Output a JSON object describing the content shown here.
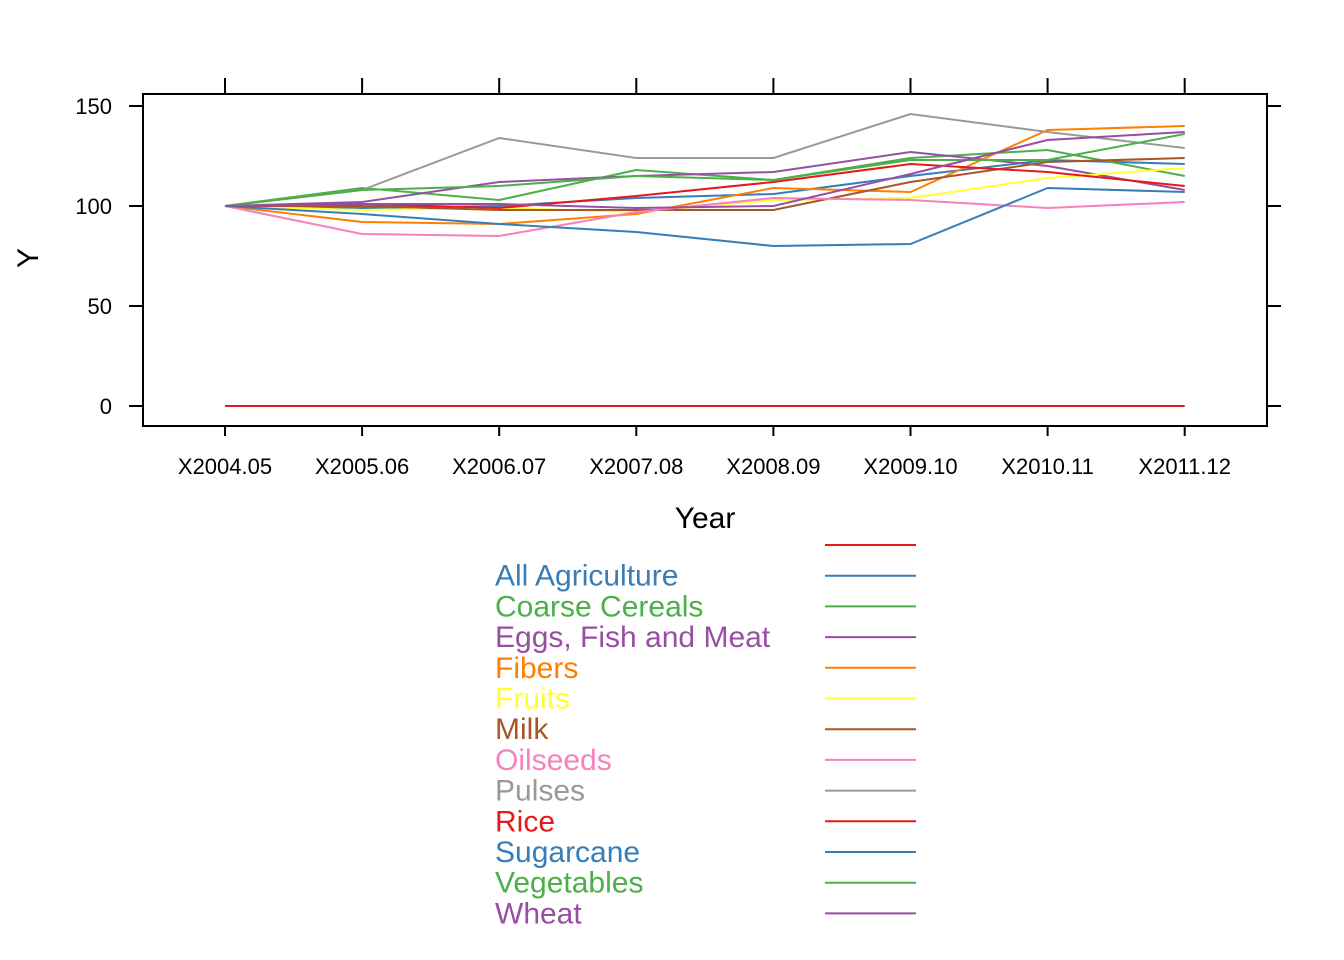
{
  "chart_data": {
    "type": "line",
    "xlabel": "Year",
    "ylabel": "Y",
    "ylim": [
      -10,
      160
    ],
    "yticks": [
      0,
      50,
      100,
      150
    ],
    "categories": [
      "X2004.05",
      "X2005.06",
      "X2006.07",
      "X2007.08",
      "X2008.09",
      "X2009.10",
      "X2010.11",
      "X2011.12"
    ],
    "legend_position": "bottom",
    "series": [
      {
        "name": "",
        "color": "#E41A1C",
        "values": [
          0,
          0,
          0,
          0,
          0,
          0,
          0,
          0
        ]
      },
      {
        "name": "All Agriculture",
        "color": "#377EB8",
        "values": [
          100,
          99,
          100,
          104,
          106,
          115,
          123,
          121
        ]
      },
      {
        "name": "Coarse Cereals",
        "color": "#4DAF4A",
        "values": [
          100,
          109,
          103,
          118,
          113,
          124,
          128,
          115
        ]
      },
      {
        "name": "Eggs, Fish and Meat",
        "color": "#984EA3",
        "values": [
          100,
          102,
          112,
          115,
          117,
          127,
          120,
          108
        ]
      },
      {
        "name": "Fibers",
        "color": "#FF7F00",
        "values": [
          100,
          92,
          91,
          96,
          109,
          107,
          138,
          140
        ]
      },
      {
        "name": "Fruits",
        "color": "#FFFF33",
        "values": [
          100,
          98,
          99,
          97,
          103,
          104,
          114,
          119
        ]
      },
      {
        "name": "Milk",
        "color": "#A65628",
        "values": [
          100,
          100,
          98,
          98,
          98,
          112,
          122,
          124
        ]
      },
      {
        "name": "Oilseeds",
        "color": "#F781BF",
        "values": [
          100,
          86,
          85,
          97,
          104,
          103,
          99,
          102
        ]
      },
      {
        "name": "Pulses",
        "color": "#999999",
        "values": [
          100,
          108,
          134,
          124,
          124,
          146,
          137,
          129
        ]
      },
      {
        "name": "Rice",
        "color": "#E41A1C",
        "values": [
          100,
          101,
          99,
          105,
          112,
          121,
          117,
          110
        ]
      },
      {
        "name": "Sugarcane",
        "color": "#377EB8",
        "values": [
          100,
          96,
          91,
          87,
          80,
          81,
          109,
          107
        ]
      },
      {
        "name": "Vegetables",
        "color": "#4DAF4A",
        "values": [
          100,
          108,
          110,
          115,
          113,
          123,
          123,
          136
        ]
      },
      {
        "name": "Wheat",
        "color": "#984EA3",
        "values": [
          100,
          101,
          101,
          99,
          100,
          116,
          133,
          137
        ]
      }
    ]
  }
}
